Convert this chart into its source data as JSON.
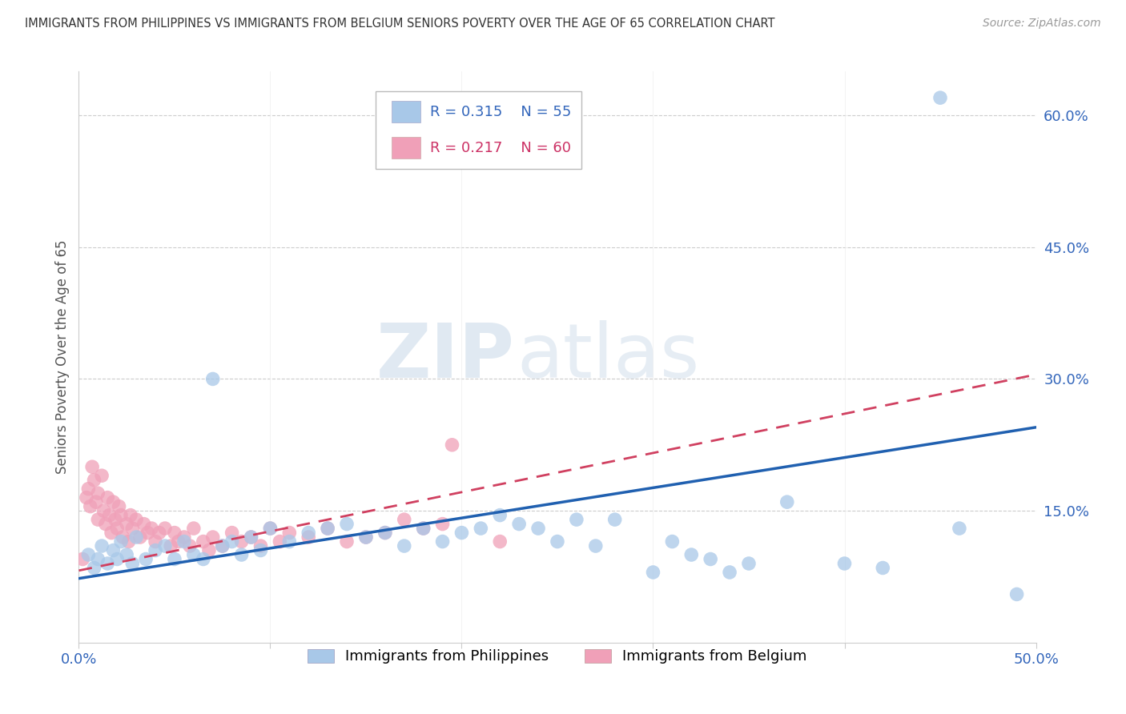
{
  "title": "IMMIGRANTS FROM PHILIPPINES VS IMMIGRANTS FROM BELGIUM SENIORS POVERTY OVER THE AGE OF 65 CORRELATION CHART",
  "source": "Source: ZipAtlas.com",
  "ylabel": "Seniors Poverty Over the Age of 65",
  "xlim": [
    0.0,
    0.5
  ],
  "ylim": [
    0.0,
    0.65
  ],
  "xticks": [
    0.0,
    0.1,
    0.2,
    0.3,
    0.4,
    0.5
  ],
  "xticklabels": [
    "0.0%",
    "",
    "",
    "",
    "",
    "50.0%"
  ],
  "ytick_positions": [
    0.15,
    0.3,
    0.45,
    0.6
  ],
  "ytick_labels": [
    "15.0%",
    "30.0%",
    "45.0%",
    "60.0%"
  ],
  "philippines_R": 0.315,
  "philippines_N": 55,
  "belgium_R": 0.217,
  "belgium_N": 60,
  "philippines_color": "#a8c8e8",
  "philippines_line_color": "#2060b0",
  "belgium_color": "#f0a0b8",
  "belgium_line_color": "#d04060",
  "watermark_zip": "ZIP",
  "watermark_atlas": "atlas",
  "philippines_x": [
    0.005,
    0.008,
    0.01,
    0.012,
    0.015,
    0.018,
    0.02,
    0.022,
    0.025,
    0.028,
    0.03,
    0.035,
    0.04,
    0.045,
    0.05,
    0.055,
    0.06,
    0.065,
    0.07,
    0.075,
    0.08,
    0.085,
    0.09,
    0.095,
    0.1,
    0.11,
    0.12,
    0.13,
    0.14,
    0.15,
    0.16,
    0.17,
    0.18,
    0.19,
    0.2,
    0.21,
    0.22,
    0.23,
    0.24,
    0.25,
    0.26,
    0.27,
    0.28,
    0.3,
    0.31,
    0.32,
    0.33,
    0.34,
    0.35,
    0.37,
    0.4,
    0.42,
    0.45,
    0.46,
    0.49
  ],
  "philippines_y": [
    0.1,
    0.085,
    0.095,
    0.11,
    0.09,
    0.105,
    0.095,
    0.115,
    0.1,
    0.09,
    0.12,
    0.095,
    0.105,
    0.11,
    0.095,
    0.115,
    0.1,
    0.095,
    0.3,
    0.11,
    0.115,
    0.1,
    0.12,
    0.105,
    0.13,
    0.115,
    0.125,
    0.13,
    0.135,
    0.12,
    0.125,
    0.11,
    0.13,
    0.115,
    0.125,
    0.13,
    0.145,
    0.135,
    0.13,
    0.115,
    0.14,
    0.11,
    0.14,
    0.08,
    0.115,
    0.1,
    0.095,
    0.08,
    0.09,
    0.16,
    0.09,
    0.085,
    0.62,
    0.13,
    0.055
  ],
  "belgium_x": [
    0.002,
    0.004,
    0.005,
    0.006,
    0.007,
    0.008,
    0.009,
    0.01,
    0.01,
    0.012,
    0.013,
    0.014,
    0.015,
    0.016,
    0.017,
    0.018,
    0.019,
    0.02,
    0.021,
    0.022,
    0.023,
    0.025,
    0.026,
    0.027,
    0.028,
    0.03,
    0.032,
    0.034,
    0.036,
    0.038,
    0.04,
    0.042,
    0.045,
    0.048,
    0.05,
    0.052,
    0.055,
    0.058,
    0.06,
    0.065,
    0.068,
    0.07,
    0.075,
    0.08,
    0.085,
    0.09,
    0.095,
    0.1,
    0.105,
    0.11,
    0.12,
    0.13,
    0.14,
    0.15,
    0.16,
    0.17,
    0.18,
    0.19,
    0.195,
    0.22
  ],
  "belgium_y": [
    0.095,
    0.165,
    0.175,
    0.155,
    0.2,
    0.185,
    0.16,
    0.17,
    0.14,
    0.19,
    0.15,
    0.135,
    0.165,
    0.145,
    0.125,
    0.16,
    0.14,
    0.13,
    0.155,
    0.145,
    0.12,
    0.135,
    0.115,
    0.145,
    0.13,
    0.14,
    0.12,
    0.135,
    0.125,
    0.13,
    0.115,
    0.125,
    0.13,
    0.11,
    0.125,
    0.115,
    0.12,
    0.11,
    0.13,
    0.115,
    0.105,
    0.12,
    0.11,
    0.125,
    0.115,
    0.12,
    0.11,
    0.13,
    0.115,
    0.125,
    0.12,
    0.13,
    0.115,
    0.12,
    0.125,
    0.14,
    0.13,
    0.135,
    0.225,
    0.115
  ]
}
